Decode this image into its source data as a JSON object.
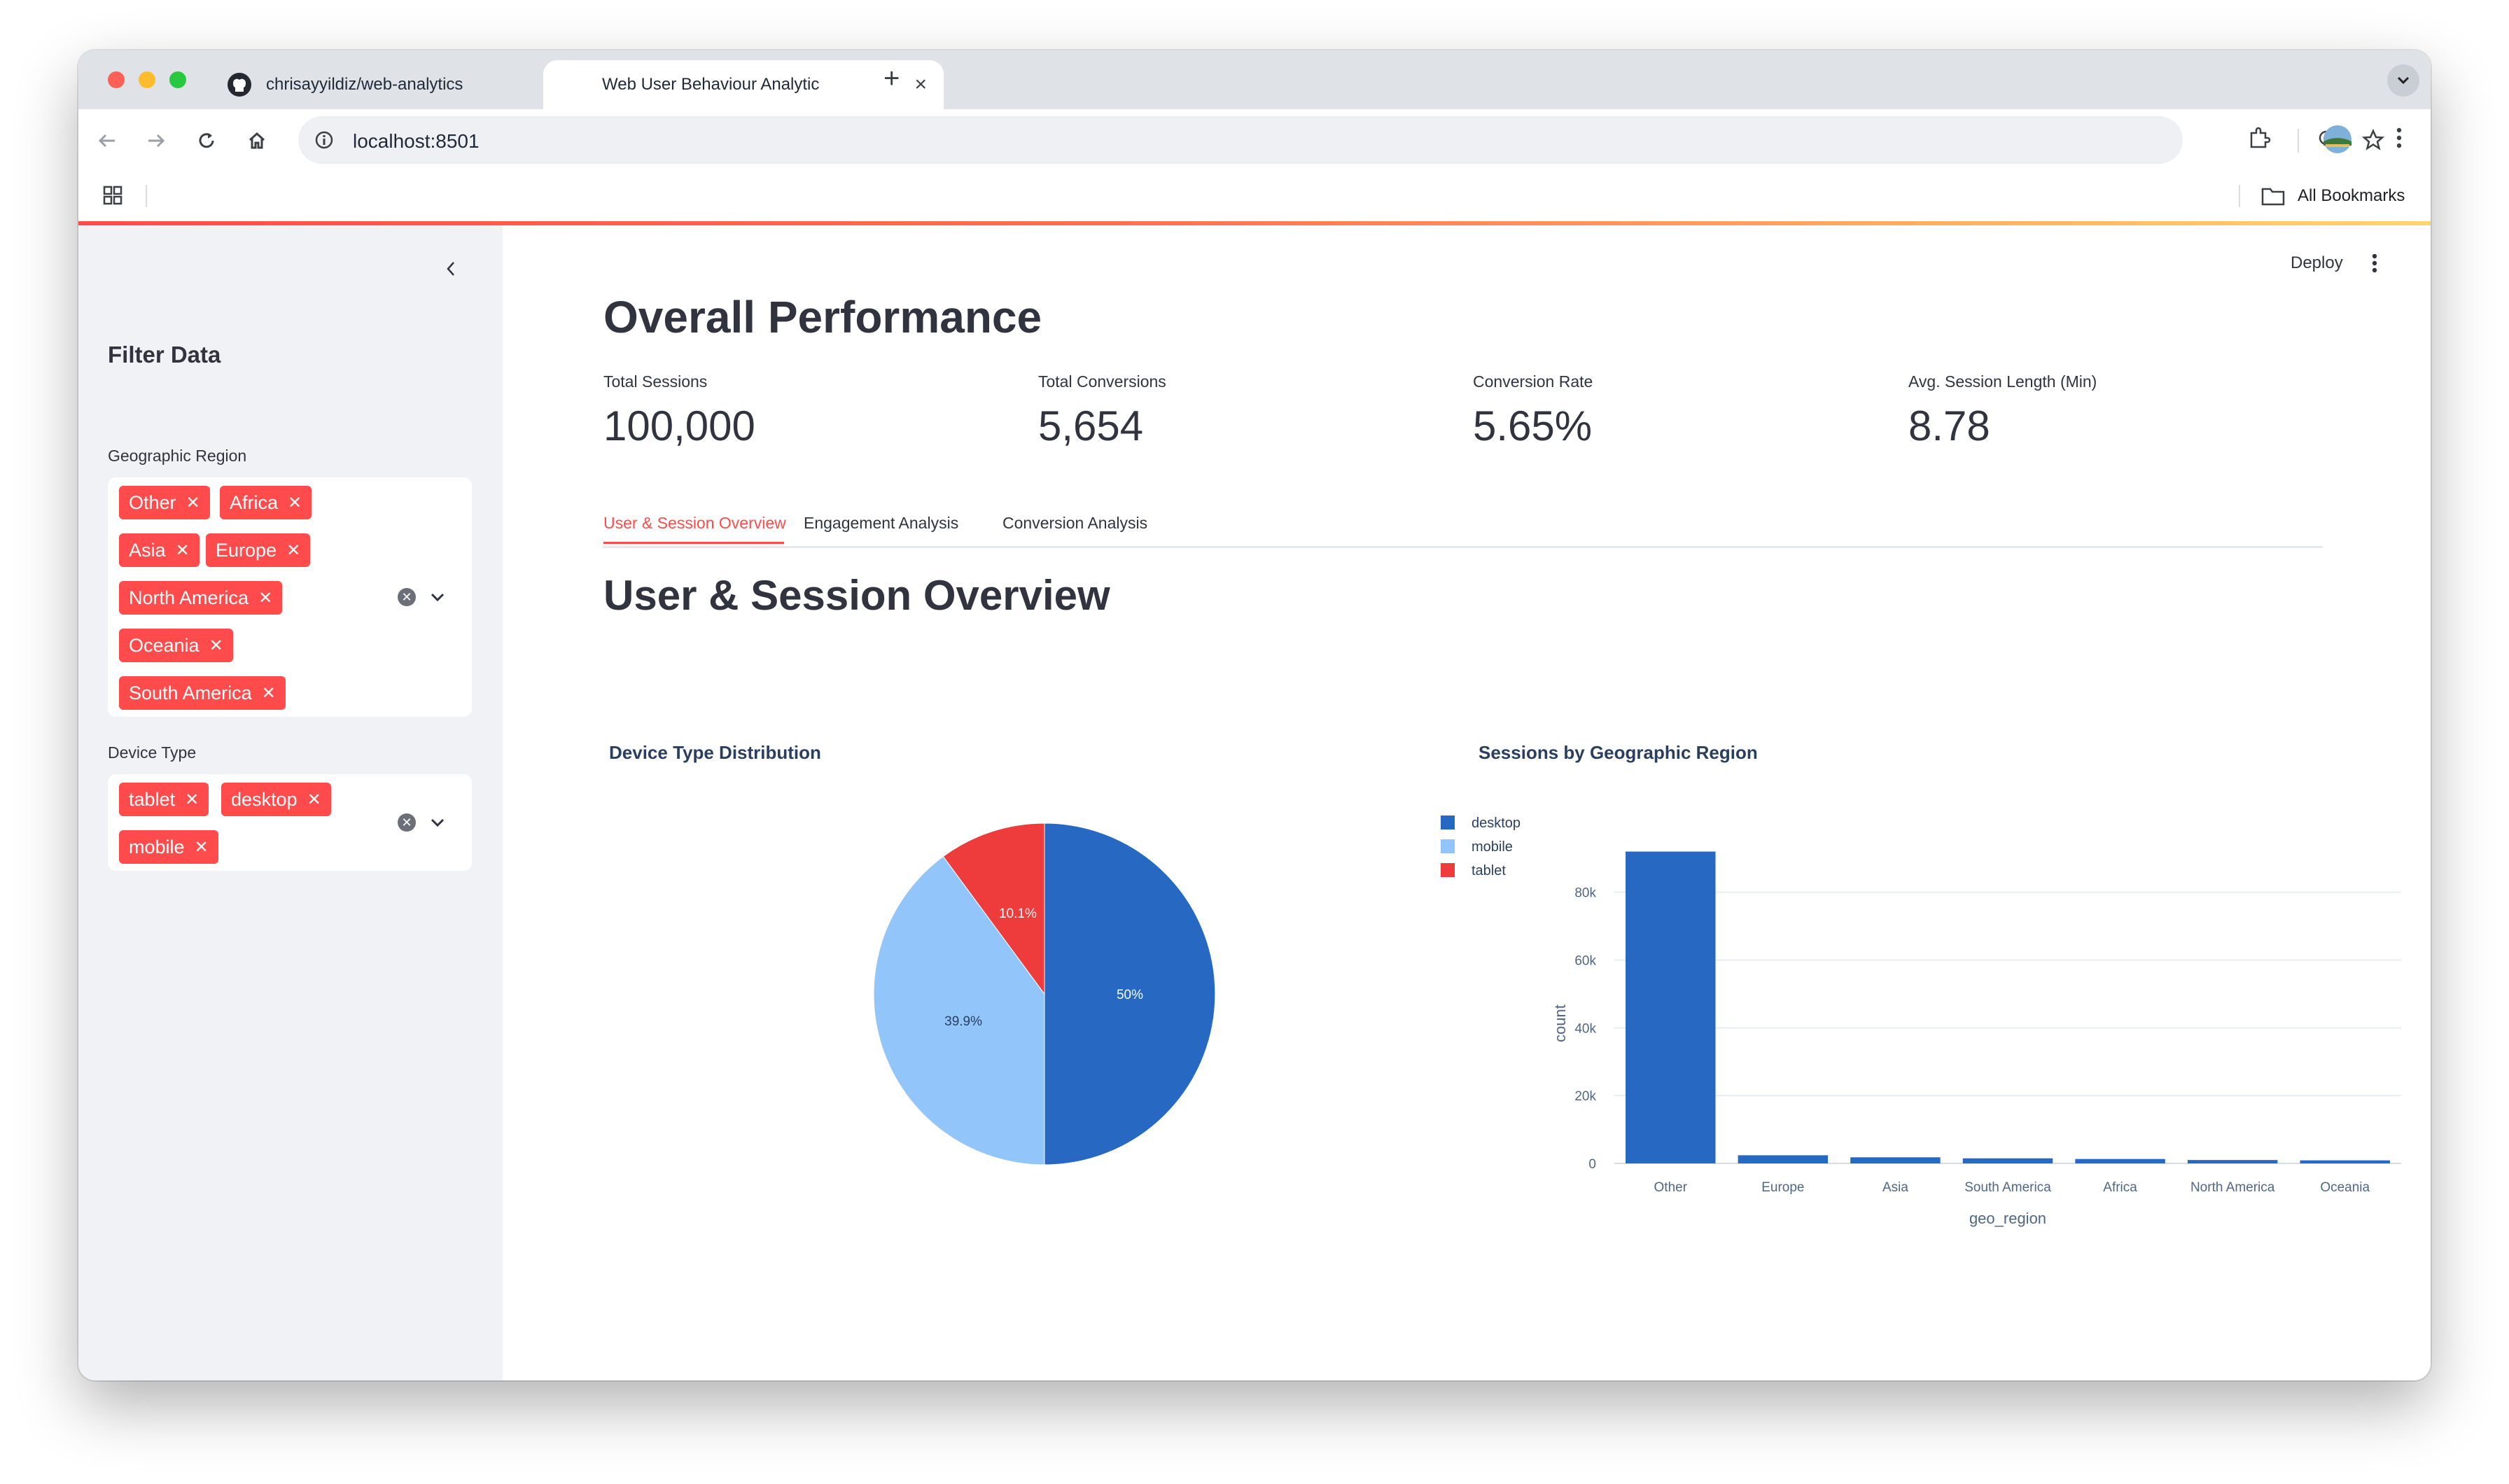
{
  "browser": {
    "tabs": [
      {
        "title": "chrisayyildiz/web-analytics",
        "active": false,
        "icon": "github-icon"
      },
      {
        "title": "Web User Behaviour Analytic",
        "active": true,
        "icon": "blank"
      }
    ],
    "url": "localhost:8501",
    "bookmarks_label": "All Bookmarks"
  },
  "sidebar": {
    "title": "Filter Data",
    "filters": [
      {
        "label": "Geographic Region",
        "chips": [
          "Other",
          "Africa",
          "Asia",
          "Europe",
          "North America",
          "Oceania",
          "South America"
        ]
      },
      {
        "label": "Device Type",
        "chips": [
          "tablet",
          "desktop",
          "mobile"
        ]
      }
    ]
  },
  "header": {
    "deploy_label": "Deploy"
  },
  "main": {
    "title": "Overall Performance",
    "metrics": [
      {
        "label": "Total Sessions",
        "value": "100,000"
      },
      {
        "label": "Total Conversions",
        "value": "5,654"
      },
      {
        "label": "Conversion Rate",
        "value": "5.65%"
      },
      {
        "label": "Avg. Session Length (Min)",
        "value": "8.78"
      }
    ],
    "tabs": [
      "User & Session Overview",
      "Engagement Analysis",
      "Conversion Analysis"
    ],
    "active_tab": 0,
    "section_title": "User & Session Overview"
  },
  "colors": {
    "accent": "#ff4b4b",
    "desktop": "#2768c3",
    "mobile": "#92c5f9",
    "tablet": "#ee3b3b"
  },
  "chart_data": [
    {
      "type": "pie",
      "title": "Device Type Distribution",
      "labels": [
        "desktop",
        "mobile",
        "tablet"
      ],
      "values": [
        50.0,
        39.9,
        10.1
      ],
      "value_labels": [
        "50%",
        "39.9%",
        "10.1%"
      ],
      "colors": [
        "#2768c3",
        "#92c5f9",
        "#ee3b3b"
      ],
      "legend": "right"
    },
    {
      "type": "bar",
      "title": "Sessions by Geographic Region",
      "categories": [
        "Other",
        "Europe",
        "Asia",
        "South America",
        "Africa",
        "North America",
        "Oceania"
      ],
      "values": [
        92000,
        2400,
        1800,
        1500,
        1300,
        1000,
        900
      ],
      "xlabel": "geo_region",
      "ylabel": "count",
      "ylim": [
        0,
        95000
      ],
      "yticks": [
        0,
        20000,
        40000,
        60000,
        80000
      ],
      "ytick_labels": [
        "0",
        "20k",
        "40k",
        "60k",
        "80k"
      ],
      "grid": true,
      "color": "#2768c3"
    }
  ]
}
